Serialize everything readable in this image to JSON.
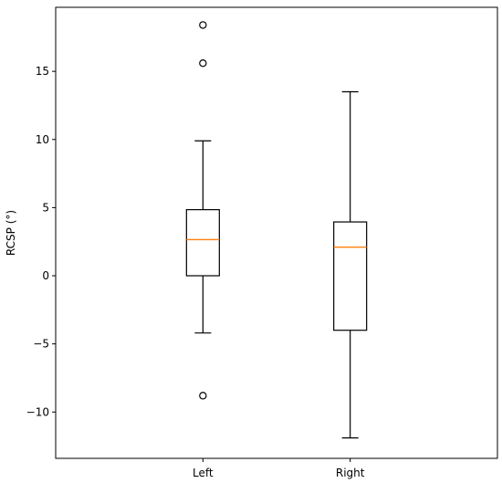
{
  "chart_data": {
    "type": "box",
    "title": "",
    "xlabel": "",
    "ylabel": "RCSP (°)",
    "ylim": [
      -13.4,
      19.7
    ],
    "yticks": [
      -10,
      -5,
      0,
      5,
      10,
      15
    ],
    "ytick_labels": [
      "−10",
      "−5",
      "0",
      "5",
      "10",
      "15"
    ],
    "categories": [
      "Left",
      "Right"
    ],
    "boxes": [
      {
        "name": "Left",
        "whisker_low": -4.2,
        "q1": 0.0,
        "median": 2.65,
        "q3": 4.85,
        "whisker_high": 9.9,
        "outliers": [
          18.4,
          15.6,
          -8.8
        ]
      },
      {
        "name": "Right",
        "whisker_low": -11.9,
        "q1": -4.0,
        "median": 2.1,
        "q3": 3.95,
        "whisker_high": 13.5,
        "outliers": []
      }
    ],
    "colors": {
      "box": "#000000",
      "median": "#ff7f0e"
    }
  }
}
